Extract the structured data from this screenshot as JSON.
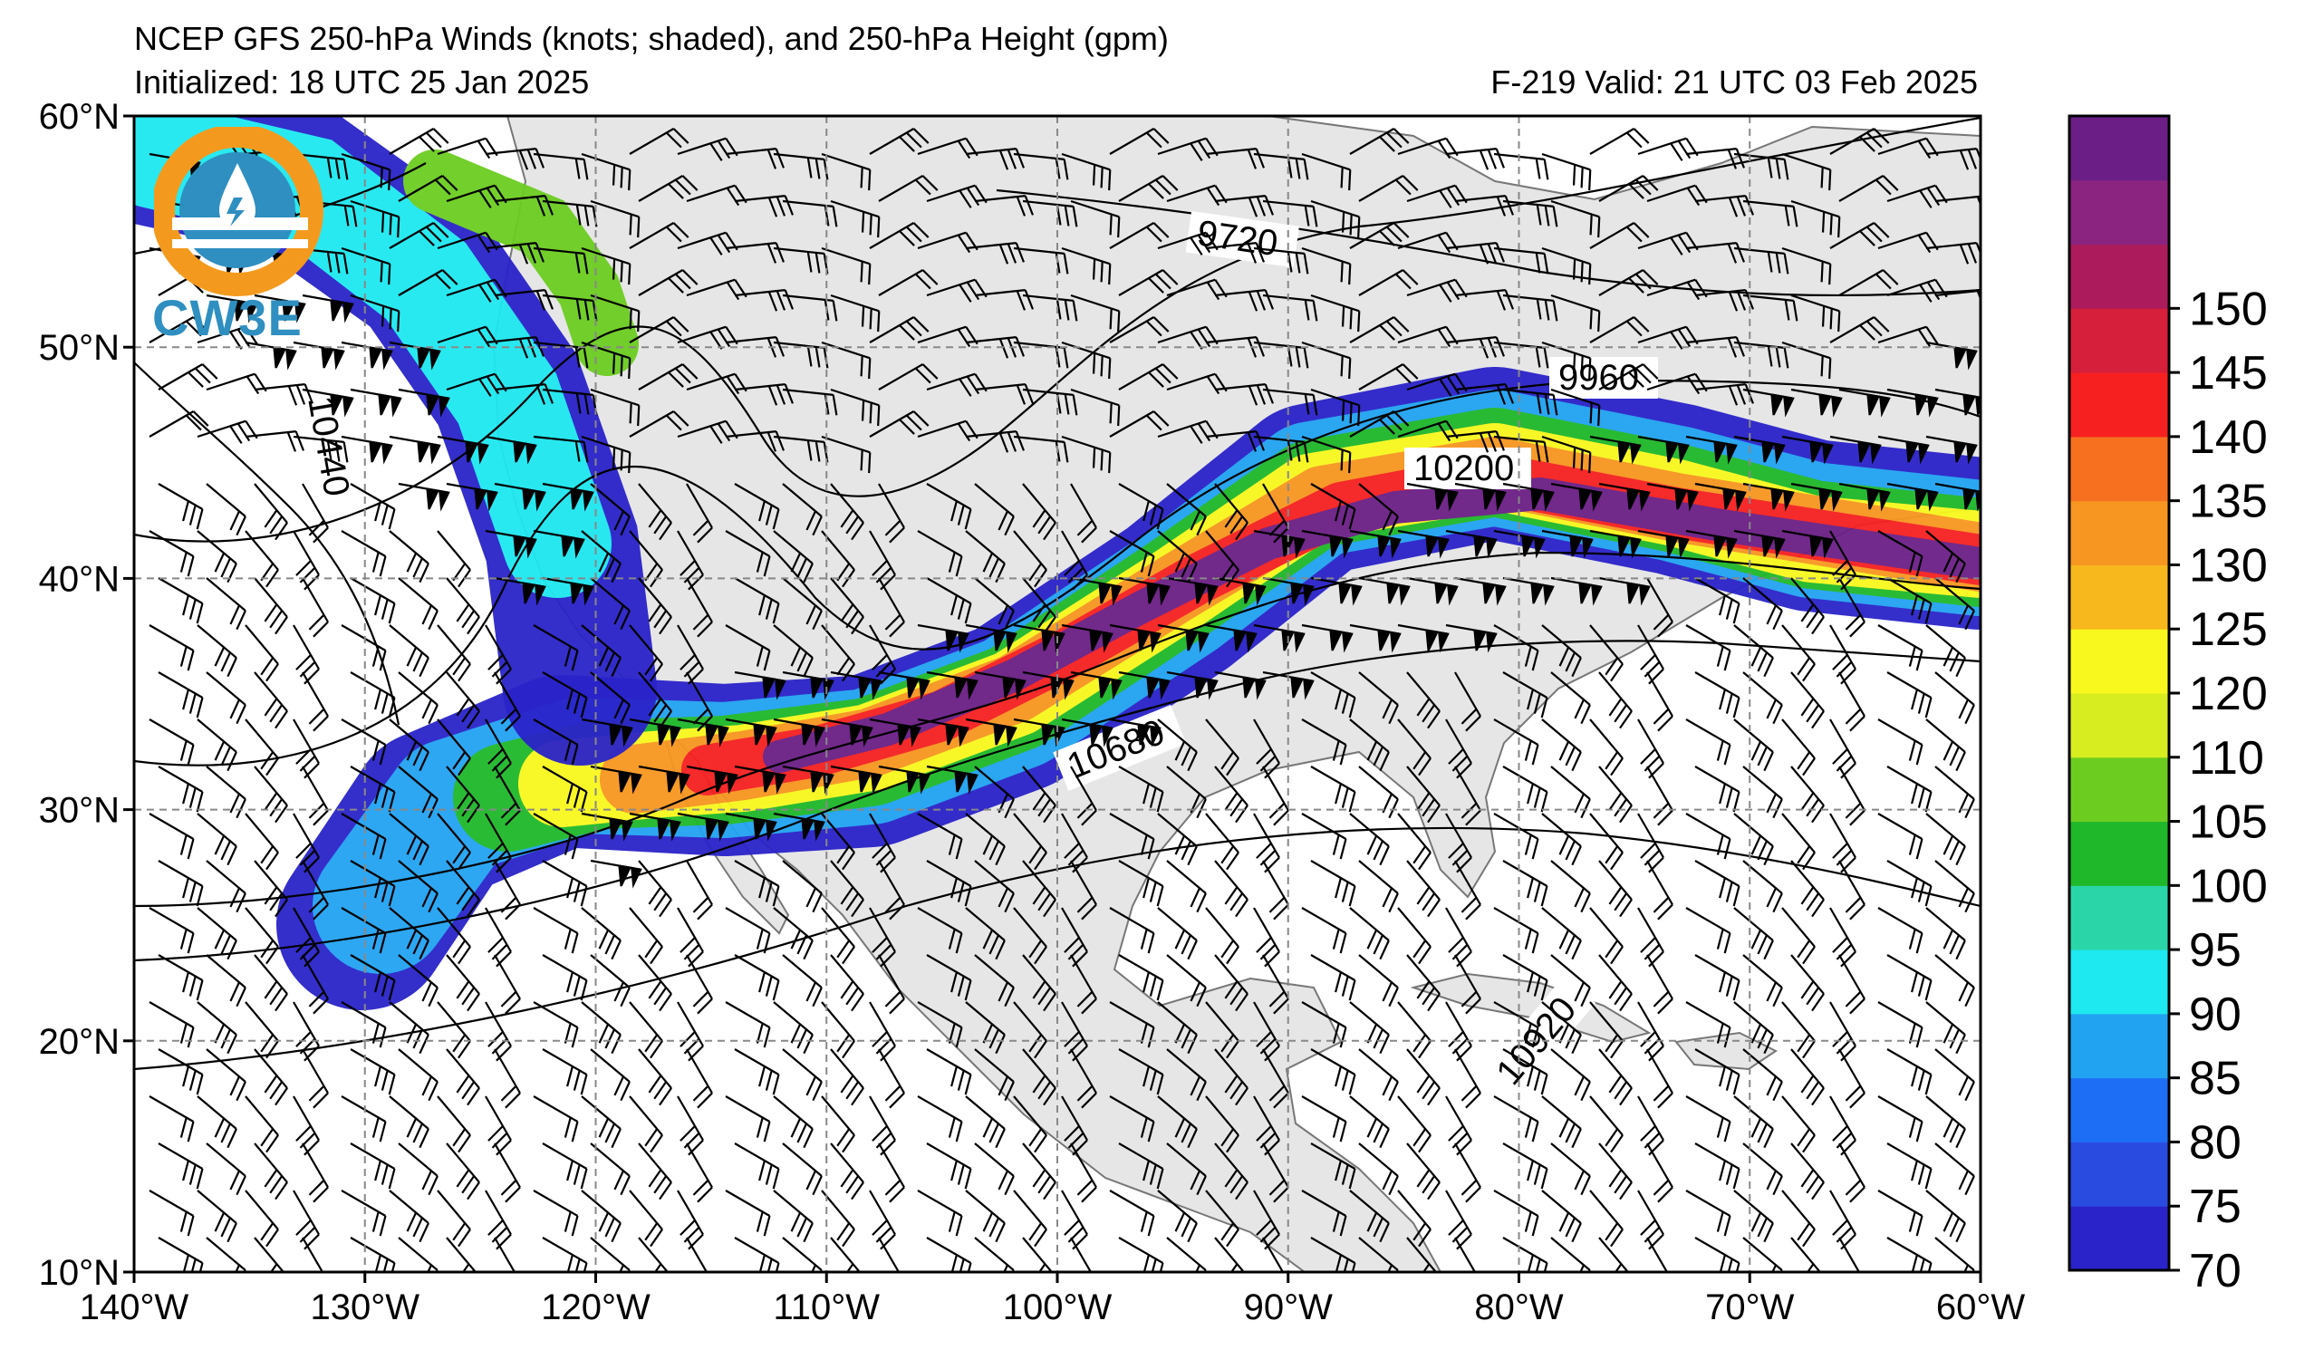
{
  "header": {
    "title": "NCEP GFS 250-hPa Winds (knots; shaded), and 250-hPa Height (gpm)",
    "initialized": "Initialized: 18 UTC 25 Jan 2025",
    "valid": "F-219  Valid: 21 UTC 03 Feb 2025"
  },
  "logo": {
    "text": "CW3E"
  },
  "map": {
    "lon_range": [
      -140,
      -60
    ],
    "lat_range": [
      10,
      60
    ],
    "lon_labels": [
      "140°W",
      "130°W",
      "120°W",
      "110°W",
      "100°W",
      "90°W",
      "80°W",
      "70°W",
      "60°W"
    ],
    "lat_labels": [
      "60°N",
      "50°N",
      "40°N",
      "30°N",
      "20°N",
      "10°N"
    ],
    "grid": "dashed",
    "land_color": "#e6e6e6",
    "ocean_color": "#ffffff"
  },
  "height_contours": {
    "labels": [
      "9720",
      "9960",
      "10200",
      "10440",
      "10680",
      "10920"
    ]
  },
  "colorbar": {
    "levels": [
      70,
      75,
      80,
      85,
      90,
      95,
      100,
      105,
      110,
      120,
      125,
      130,
      135,
      140,
      145,
      150
    ],
    "tick_labels": [
      "150",
      "145",
      "140",
      "135",
      "130",
      "125",
      "120",
      "110",
      "105",
      "100",
      "95",
      "90",
      "85",
      "80",
      "75",
      "70"
    ],
    "colors": [
      "#2a23c9",
      "#2a4be0",
      "#1d6ef5",
      "#22a3f2",
      "#1ee8f0",
      "#2ad6a8",
      "#1fb82a",
      "#6ccd20",
      "#d8ed20",
      "#f8f81e",
      "#f7b81e",
      "#f79620",
      "#f7701f",
      "#f62020",
      "#d61f3a",
      "#ac1b5c",
      "#8a2480",
      "#6b1f86"
    ]
  }
}
